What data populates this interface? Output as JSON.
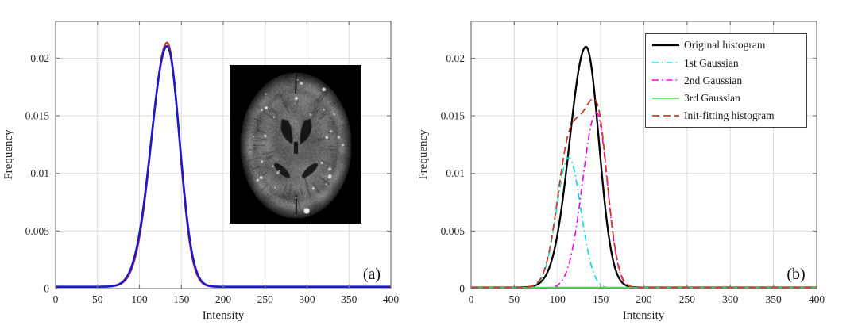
{
  "figure": {
    "background": "#ffffff",
    "panels": [
      {
        "id": "a",
        "corner_label": "(a)",
        "xlabel": "Intensity",
        "ylabel": "Frequency",
        "inset_description": "axial brain MRI slice, grayscale on black background, dark ventricles and bright vessel spots"
      },
      {
        "id": "b",
        "corner_label": "(b)",
        "xlabel": "Intensity",
        "ylabel": "Frequency",
        "legend": [
          {
            "label": "Original histogram",
            "color": "#000000",
            "dash": "solid",
            "width": 2.3
          },
          {
            "label": "1st Gaussian",
            "color": "#00dede",
            "dash": "dashdot",
            "width": 1.6
          },
          {
            "label": "2nd Gaussian",
            "color": "#ee00ee",
            "dash": "dashdot",
            "width": 1.6
          },
          {
            "label": "3rd Gaussian",
            "color": "#4ade4a",
            "dash": "solid",
            "width": 1.6
          },
          {
            "label": "Init-fitting histogram",
            "color": "#cc3b2b",
            "dash": "dashed",
            "width": 1.8
          }
        ],
        "legend_position": "northeast"
      }
    ],
    "colors": {
      "axis_box": "#7a7a7a",
      "grid": "#dcdcdc",
      "tick_text": "#262626",
      "histogram_blue": "#1a1ac8",
      "fit_red": "#cc3b2b",
      "gauss1_cyan": "#00dede",
      "gauss2_magenta": "#ee00ee",
      "gauss3_green": "#4ade4a",
      "original_black": "#000000"
    }
  },
  "chart_data": [
    {
      "type": "line",
      "panel": "a",
      "title": "",
      "xlabel": "Intensity",
      "ylabel": "Frequency",
      "xlim": [
        0,
        400
      ],
      "ylim": [
        0,
        0.0232
      ],
      "x_ticks": [
        0,
        50,
        100,
        150,
        200,
        250,
        300,
        350,
        400
      ],
      "y_ticks": [
        0,
        0.005,
        0.01,
        0.015,
        0.02
      ],
      "y_tick_labels": [
        "0",
        "0.005",
        "0.01",
        "0.015",
        "0.02"
      ],
      "grid": true,
      "series": [
        {
          "name": "fitted curve (red tip at peak)",
          "color": "#cc3b2b",
          "style": "solid",
          "width": 2.4,
          "model": {
            "baseline": 0.00016,
            "components": [
              {
                "A": 0.0212,
                "mu": 133,
                "sigma_left": 18.5,
                "sigma_right": 14.6
              }
            ]
          },
          "peak": {
            "x": 133,
            "y": 0.0212
          }
        },
        {
          "name": "original histogram",
          "color": "#1a1ac8",
          "style": "solid",
          "width": 2.6,
          "model": {
            "baseline": 0.00016,
            "components": [
              {
                "A": 0.0209,
                "mu": 133,
                "sigma_left": 19,
                "sigma_right": 15
              }
            ]
          },
          "peak": {
            "x": 133,
            "y": 0.0209
          },
          "key_points": [
            [
              50,
              0.0002
            ],
            [
              75,
              0.0004
            ],
            [
              100,
              0.0048
            ],
            [
              125,
              0.0192
            ],
            [
              133,
              0.021
            ],
            [
              150,
              0.0111
            ],
            [
              175,
              0.0006
            ],
            [
              200,
              0.0002
            ],
            [
              400,
              0.0002
            ]
          ]
        }
      ],
      "annotations": [
        "(a)"
      ],
      "inset": {
        "type": "image",
        "description": "axial brain MRI slice",
        "x_range": [
          208,
          365
        ],
        "y_range": [
          0.0056,
          0.0194
        ]
      }
    },
    {
      "type": "line",
      "panel": "b",
      "title": "",
      "xlabel": "Intensity",
      "ylabel": "Frequency",
      "xlim": [
        0,
        400
      ],
      "ylim": [
        0,
        0.0232
      ],
      "x_ticks": [
        0,
        50,
        100,
        150,
        200,
        250,
        300,
        350,
        400
      ],
      "y_ticks": [
        0,
        0.005,
        0.01,
        0.015,
        0.02
      ],
      "y_tick_labels": [
        "0",
        "0.005",
        "0.01",
        "0.015",
        "0.02"
      ],
      "grid": true,
      "legend_position": "northeast",
      "series": [
        {
          "name": "Original histogram",
          "color": "#000000",
          "style": "solid",
          "width": 2.3,
          "model": {
            "baseline": 0.0001,
            "components": [
              {
                "A": 0.0209,
                "mu": 133,
                "sigma_left": 19,
                "sigma_right": 15
              }
            ]
          },
          "peak": {
            "x": 133,
            "y": 0.0209
          },
          "key_points": [
            [
              75,
              0.0003
            ],
            [
              100,
              0.0047
            ],
            [
              125,
              0.0191
            ],
            [
              133,
              0.0209
            ],
            [
              150,
              0.011
            ],
            [
              175,
              0.0005
            ],
            [
              200,
              0.0001
            ]
          ]
        },
        {
          "name": "1st Gaussian",
          "color": "#00dede",
          "style": "dashdot",
          "width": 1.6,
          "model": {
            "baseline": 0,
            "components": [
              {
                "A": 0.0114,
                "mu": 113,
                "sigma_left": 14,
                "sigma_right": 14
              }
            ]
          },
          "peak": {
            "x": 113,
            "y": 0.0114
          }
        },
        {
          "name": "2nd Gaussian",
          "color": "#ee00ee",
          "style": "dashdot",
          "width": 1.6,
          "model": {
            "baseline": 0,
            "components": [
              {
                "A": 0.0153,
                "mu": 145,
                "sigma_left": 16,
                "sigma_right": 12.5
              }
            ]
          },
          "peak": {
            "x": 145,
            "y": 0.0153
          }
        },
        {
          "name": "3rd Gaussian",
          "color": "#4ade4a",
          "style": "solid",
          "width": 1.6,
          "model": {
            "constant": 0.0001
          },
          "peak": {
            "x": null,
            "y": 0.0001
          }
        },
        {
          "name": "Init-fitting histogram",
          "color": "#cc3b2b",
          "style": "dashed",
          "width": 1.8,
          "model": {
            "baseline": 0.0001,
            "components": [
              {
                "A": 0.0114,
                "mu": 113,
                "sigma_left": 14,
                "sigma_right": 14
              },
              {
                "A": 0.0153,
                "mu": 145,
                "sigma_left": 16,
                "sigma_right": 12.5
              }
            ]
          },
          "peak": {
            "x": 142,
            "y": 0.0162
          },
          "shoulder": {
            "x": 110,
            "y": 0.0126
          }
        }
      ],
      "annotations": [
        "(b)"
      ]
    }
  ]
}
